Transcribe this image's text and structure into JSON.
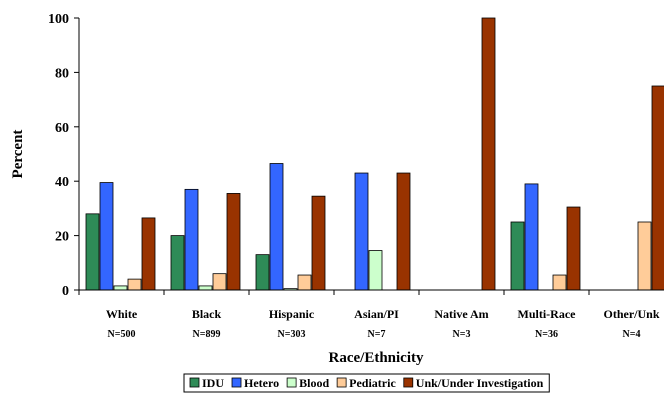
{
  "chart_data": {
    "type": "bar",
    "xlabel": "Race/Ethnicity",
    "ylabel": "Percent",
    "ylim": [
      0,
      100
    ],
    "yticks": [
      "0",
      "20",
      "40",
      "60",
      "80",
      "100"
    ],
    "categories": [
      "White",
      "Black",
      "Hispanic",
      "Asian/PI",
      "Native Am",
      "Multi-Race",
      "Other/Unk"
    ],
    "category_counts": [
      "N=500",
      "N=899",
      "N=303",
      "N=7",
      "N=3",
      "N=36",
      "N=4"
    ],
    "series": [
      {
        "name": "IDU",
        "color": "#2e8b57",
        "values": [
          28,
          20,
          13,
          0,
          0,
          25,
          0
        ]
      },
      {
        "name": "Hetero",
        "color": "#3366ff",
        "values": [
          39.5,
          37,
          46.5,
          43,
          0,
          39,
          0
        ]
      },
      {
        "name": "Blood",
        "color": "#ccffcc",
        "values": [
          1.5,
          1.5,
          0.5,
          14.5,
          0,
          0,
          0
        ]
      },
      {
        "name": "Pediatric",
        "color": "#ffcc99",
        "values": [
          4,
          6,
          5.5,
          0,
          0,
          5.5,
          25
        ]
      },
      {
        "name": "Unk/Under Investigation",
        "color": "#993300",
        "values": [
          26.5,
          35.5,
          34.5,
          43,
          100,
          30.5,
          75
        ]
      }
    ],
    "legend_position": "bottom"
  }
}
